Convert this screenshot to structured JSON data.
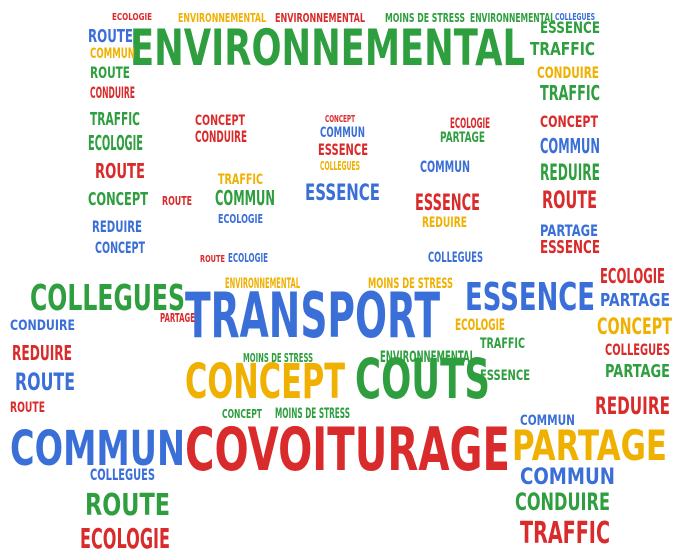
{
  "words": [
    "ENVIRONNEMENTAL",
    "TRANSPORT",
    "COVOITURAGE",
    "COMMUN",
    "CONCEPT",
    "COUTS",
    "PARTAGE",
    "ESSENCE",
    "COLLEGUES",
    "ROUTE",
    "ECOLOGIE",
    "TRAFFIC",
    "CONDUIRE",
    "COMMUN",
    "REDUIRE",
    "CONCEPT",
    "PARTAGE",
    "ECOLOGIE",
    "COLLEGUES",
    "PARTAGE",
    "ESSENCE",
    "PARTAGE",
    "ROUTE",
    "REDUIRE",
    "COMMUN",
    "CONCEPT",
    "TRAFFIC",
    "CONDUIRE",
    "TRAFFIC",
    "ESSENCE",
    "ROUTE",
    "COMMUN",
    "ROUTE",
    "CONDUIRE",
    "TRAFFIC",
    "ECOLOGIE",
    "ROUTE",
    "CONCEPT",
    "REDUIRE",
    "CONCEPT",
    "CONDUIRE",
    "REDUIRE",
    "ROUTE",
    "ROUTE",
    "CONCEPT",
    "CONDUIRE",
    "TRAFFIC",
    "COMMUN",
    "ECOLOGIE",
    "ROUTE",
    "CONCEPT",
    "COMMUN",
    "ESSENCE",
    "COLLEGUES",
    "ESSENCE",
    "ECOLOGIE",
    "PARTAGE",
    "COMMUN",
    "ESSENCE",
    "REDUIRE",
    "ECOLOGIE",
    "COLLEGUES",
    "ROUTE",
    "ENVIRONNEMENTAL",
    "MOINS DE STRESS",
    "ECOLOGIE",
    "PARTAGE",
    "MOINS DE STRESS",
    "ENVIRONNEMENTAL",
    "MOINS DE STRESS",
    "CONCEPT",
    "TRAFFIC",
    "ECOLOGIE",
    "ENVIRONNEMENTAL",
    "ENVIRONNEMENTAL",
    "MOINS DE STRESS",
    "ENVIRONNEMENTAL",
    "COLLEGUES",
    "COLLEGUES",
    "ESSENCE",
    "COMMUN"
  ]
}
